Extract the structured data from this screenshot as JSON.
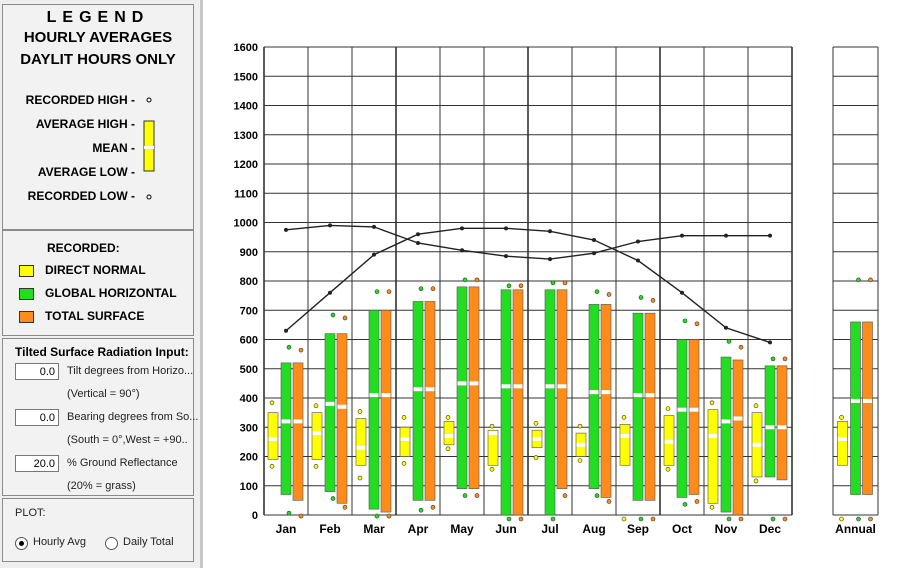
{
  "legend_panel": {
    "title": "LEGEND",
    "subtitle1": "HOURLY AVERAGES",
    "subtitle2": "DAYLIT HOURS ONLY",
    "key": {
      "recorded_high": "RECORDED HIGH -",
      "average_high": "AVERAGE HIGH -",
      "mean": "MEAN -",
      "average_low": "AVERAGE LOW -",
      "recorded_low": "RECORDED LOW -"
    },
    "recorded_heading": "RECORDED:"
  },
  "tilt_input": {
    "heading": "Tilted Surface Radiation Input:",
    "fields": [
      {
        "value": "0.0",
        "label": "Tilt degrees from Horizo...",
        "note": "(Vertical = 90°)"
      },
      {
        "value": "0.0",
        "label": "Bearing degrees from So...",
        "note": "(South = 0°,West = +90.."
      },
      {
        "value": "20.0",
        "label": "% Ground Reflectance",
        "note": "(20% = grass)"
      }
    ]
  },
  "plot_options": {
    "heading": "PLOT:",
    "options": [
      "Hourly Avg",
      "Daily Total"
    ],
    "selected": "Hourly Avg"
  },
  "chart_data": {
    "type": "box",
    "categories": [
      "Jan",
      "Feb",
      "Mar",
      "Apr",
      "May",
      "Jun",
      "Jul",
      "Aug",
      "Sep",
      "Oct",
      "Nov",
      "Dec",
      "Annual"
    ],
    "ylim": [
      0,
      1600
    ],
    "yticks": [
      0,
      100,
      200,
      300,
      400,
      500,
      600,
      700,
      800,
      900,
      1000,
      1100,
      1200,
      1300,
      1400,
      1500,
      1600
    ],
    "grid": true,
    "series": [
      {
        "name": "DIRECT NORMAL",
        "color": "#ffff00",
        "average_low": [
          190,
          190,
          170,
          200,
          240,
          170,
          230,
          200,
          170,
          170,
          40,
          130,
          170
        ],
        "average_high": [
          350,
          350,
          330,
          300,
          320,
          290,
          290,
          280,
          310,
          340,
          360,
          350,
          320
        ],
        "mean": [
          260,
          280,
          230,
          260,
          270,
          280,
          260,
          240,
          270,
          250,
          270,
          240,
          260
        ],
        "recorded_high": [
          370,
          360,
          340,
          320,
          320,
          290,
          300,
          290,
          320,
          350,
          370,
          360,
          320
        ],
        "recorded_low": [
          180,
          180,
          140,
          190,
          240,
          170,
          210,
          200,
          0,
          170,
          40,
          130,
          0
        ]
      },
      {
        "name": "GLOBAL HORIZONTAL",
        "color": "#22dd22",
        "average_low": [
          70,
          80,
          20,
          50,
          90,
          0,
          0,
          90,
          50,
          60,
          10,
          130,
          70
        ],
        "average_high": [
          520,
          620,
          700,
          730,
          780,
          770,
          770,
          720,
          690,
          600,
          540,
          510,
          660
        ],
        "mean": [
          320,
          380,
          410,
          430,
          450,
          440,
          440,
          420,
          410,
          360,
          320,
          300,
          390
        ],
        "recorded_high": [
          560,
          670,
          750,
          760,
          790,
          770,
          780,
          750,
          730,
          650,
          580,
          520,
          790
        ],
        "recorded_low": [
          20,
          70,
          10,
          30,
          80,
          0,
          0,
          80,
          0,
          50,
          0,
          0,
          0
        ]
      },
      {
        "name": "TOTAL SURFACE",
        "color": "#ff8c1a",
        "average_low": [
          50,
          40,
          10,
          50,
          90,
          0,
          90,
          60,
          50,
          70,
          0,
          120,
          70
        ],
        "average_high": [
          520,
          620,
          700,
          730,
          780,
          770,
          770,
          720,
          690,
          600,
          530,
          510,
          660
        ],
        "mean": [
          320,
          370,
          410,
          430,
          450,
          440,
          440,
          420,
          410,
          360,
          330,
          300,
          390
        ],
        "recorded_high": [
          550,
          660,
          750,
          760,
          790,
          770,
          780,
          740,
          720,
          640,
          560,
          520,
          790
        ],
        "recorded_low": [
          10,
          40,
          10,
          40,
          80,
          0,
          80,
          60,
          0,
          60,
          0,
          0,
          0
        ]
      }
    ],
    "lines": [
      {
        "values": [
          630,
          760,
          890,
          960,
          980,
          980,
          970,
          940,
          870,
          760,
          640,
          590,
          null
        ]
      },
      {
        "values": [
          975,
          990,
          985,
          930,
          905,
          885,
          875,
          895,
          935,
          955,
          955,
          955,
          null
        ]
      }
    ]
  }
}
